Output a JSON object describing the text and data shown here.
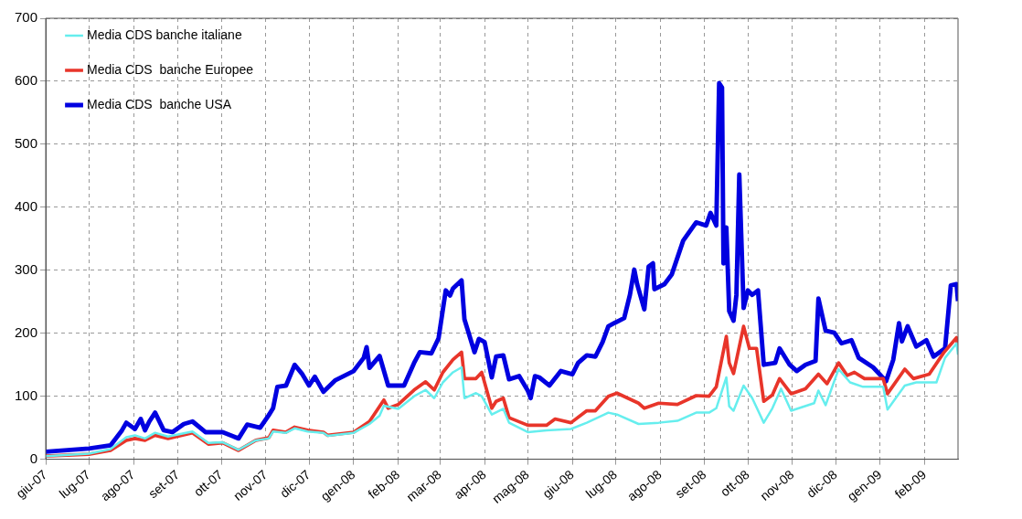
{
  "chart_data": {
    "type": "line",
    "xlim": [
      "2007-06-01",
      "2009-02-24"
    ],
    "xticks": [
      {
        "value": "2007-06-01",
        "label": "giu-07"
      },
      {
        "value": "2007-07-01",
        "label": "lug-07"
      },
      {
        "value": "2007-08-01",
        "label": "ago-07"
      },
      {
        "value": "2007-09-01",
        "label": "set-07"
      },
      {
        "value": "2007-10-01",
        "label": "ott-07"
      },
      {
        "value": "2007-11-01",
        "label": "nov-07"
      },
      {
        "value": "2007-12-01",
        "label": "dic-07"
      },
      {
        "value": "2008-01-01",
        "label": "gen-08"
      },
      {
        "value": "2008-02-01",
        "label": "feb-08"
      },
      {
        "value": "2008-03-01",
        "label": "mar-08"
      },
      {
        "value": "2008-04-01",
        "label": "apr-08"
      },
      {
        "value": "2008-05-01",
        "label": "mag-08"
      },
      {
        "value": "2008-06-01",
        "label": "giu-08"
      },
      {
        "value": "2008-07-01",
        "label": "lug-08"
      },
      {
        "value": "2008-08-01",
        "label": "ago-08"
      },
      {
        "value": "2008-09-01",
        "label": "set-08"
      },
      {
        "value": "2008-10-01",
        "label": "ott-08"
      },
      {
        "value": "2008-11-01",
        "label": "nov-08"
      },
      {
        "value": "2008-12-01",
        "label": "dic-08"
      },
      {
        "value": "2009-01-01",
        "label": "gen-09"
      },
      {
        "value": "2009-02-01",
        "label": "feb-09"
      }
    ],
    "ylim": [
      0,
      700
    ],
    "yticks": [
      0,
      100,
      200,
      300,
      400,
      500,
      600,
      700
    ],
    "grid": true,
    "legend": "top left",
    "marker": "none",
    "line_style": "solid",
    "series": [
      {
        "name": "Media CDS banche italiane",
        "color": "#66eeee",
        "x": [
          "2007-06-01",
          "2007-07-01",
          "2007-07-16",
          "2007-07-27",
          "2007-08-02",
          "2007-08-09",
          "2007-08-16",
          "2007-08-25",
          "2007-09-11",
          "2007-09-22",
          "2007-10-02",
          "2007-10-13",
          "2007-10-25",
          "2007-11-03",
          "2007-11-06",
          "2007-11-15",
          "2007-11-21",
          "2007-11-30",
          "2007-12-11",
          "2007-12-14",
          "2008-01-01",
          "2008-01-12",
          "2008-01-19",
          "2008-01-22",
          "2008-02-01",
          "2008-02-12",
          "2008-02-20",
          "2008-02-26",
          "2008-03-03",
          "2008-03-10",
          "2008-03-16",
          "2008-03-18",
          "2008-03-26",
          "2008-03-30",
          "2008-04-06",
          "2008-04-14",
          "2008-04-18",
          "2008-05-01",
          "2008-05-14",
          "2008-05-31",
          "2008-06-11",
          "2008-06-26",
          "2008-07-02",
          "2008-07-17",
          "2008-07-31",
          "2008-08-13",
          "2008-08-26",
          "2008-09-04",
          "2008-09-09",
          "2008-09-16",
          "2008-09-18",
          "2008-09-21",
          "2008-09-28",
          "2008-10-04",
          "2008-10-12",
          "2008-10-18",
          "2008-10-24",
          "2008-10-31",
          "2008-11-16",
          "2008-11-19",
          "2008-11-24",
          "2008-12-03",
          "2008-12-11",
          "2008-12-20",
          "2009-01-03",
          "2009-01-06",
          "2009-01-18",
          "2009-01-26",
          "2009-02-09",
          "2009-02-15",
          "2009-02-23",
          "2009-02-24"
        ],
        "values": [
          5,
          9,
          16,
          35,
          38,
          33,
          42,
          36,
          44,
          26,
          27,
          15,
          30,
          33,
          44,
          42,
          49,
          44,
          42,
          37,
          42,
          56,
          69,
          85,
          80,
          100,
          110,
          97,
          122,
          138,
          146,
          97,
          105,
          100,
          71,
          80,
          58,
          43,
          46,
          48,
          58,
          74,
          71,
          56,
          58,
          61,
          74,
          74,
          81,
          130,
          84,
          77,
          117,
          97,
          58,
          81,
          112,
          77,
          89,
          109,
          86,
          143,
          122,
          115,
          115,
          79,
          117,
          122,
          122,
          161,
          184,
          166
        ]
      },
      {
        "name": "Media CDS  banche Europee",
        "color": "#e8352a",
        "x": [
          "2007-06-01",
          "2007-07-01",
          "2007-07-16",
          "2007-07-27",
          "2007-08-02",
          "2007-08-09",
          "2007-08-16",
          "2007-08-25",
          "2007-09-11",
          "2007-09-22",
          "2007-10-02",
          "2007-10-13",
          "2007-10-25",
          "2007-11-03",
          "2007-11-06",
          "2007-11-15",
          "2007-11-21",
          "2007-11-30",
          "2007-12-11",
          "2007-12-14",
          "2008-01-01",
          "2008-01-12",
          "2008-01-22",
          "2008-01-25",
          "2008-02-01",
          "2008-02-12",
          "2008-02-20",
          "2008-02-26",
          "2008-03-03",
          "2008-03-10",
          "2008-03-16",
          "2008-03-18",
          "2008-03-26",
          "2008-03-30",
          "2008-04-06",
          "2008-04-09",
          "2008-04-14",
          "2008-04-18",
          "2008-05-01",
          "2008-05-14",
          "2008-05-20",
          "2008-05-31",
          "2008-06-11",
          "2008-06-17",
          "2008-06-26",
          "2008-07-02",
          "2008-07-17",
          "2008-07-21",
          "2008-07-31",
          "2008-08-13",
          "2008-08-26",
          "2008-09-04",
          "2008-09-09",
          "2008-09-16",
          "2008-09-18",
          "2008-09-21",
          "2008-09-28",
          "2008-10-02",
          "2008-10-07",
          "2008-10-12",
          "2008-10-18",
          "2008-10-23",
          "2008-10-31",
          "2008-11-10",
          "2008-11-19",
          "2008-11-25",
          "2008-12-03",
          "2008-12-09",
          "2008-12-14",
          "2008-12-21",
          "2009-01-03",
          "2009-01-06",
          "2009-01-18",
          "2009-01-24",
          "2009-02-04",
          "2009-02-14",
          "2009-02-23",
          "2009-02-24"
        ],
        "values": [
          5,
          8,
          14,
          30,
          33,
          30,
          38,
          33,
          42,
          24,
          26,
          14,
          30,
          34,
          46,
          43,
          51,
          46,
          43,
          38,
          43,
          60,
          94,
          81,
          87,
          110,
          123,
          110,
          138,
          158,
          170,
          128,
          128,
          138,
          81,
          92,
          97,
          66,
          54,
          54,
          64,
          58,
          77,
          77,
          100,
          105,
          89,
          81,
          89,
          87,
          101,
          100,
          115,
          195,
          153,
          136,
          211,
          176,
          176,
          92,
          102,
          128,
          104,
          112,
          135,
          120,
          153,
          133,
          138,
          128,
          128,
          104,
          143,
          128,
          135,
          169,
          193,
          176
        ]
      },
      {
        "name": "Media CDS  banche USA",
        "color": "#0000e0",
        "x": [
          "2007-06-01",
          "2007-07-01",
          "2007-07-16",
          "2007-07-24",
          "2007-07-27",
          "2007-08-02",
          "2007-08-06",
          "2007-08-09",
          "2007-08-12",
          "2007-08-16",
          "2007-08-22",
          "2007-08-28",
          "2007-09-05",
          "2007-09-11",
          "2007-09-20",
          "2007-10-02",
          "2007-10-13",
          "2007-10-19",
          "2007-10-28",
          "2007-11-03",
          "2007-11-06",
          "2007-11-09",
          "2007-11-15",
          "2007-11-21",
          "2007-11-26",
          "2007-12-01",
          "2007-12-05",
          "2007-12-11",
          "2007-12-19",
          "2008-01-01",
          "2008-01-08",
          "2008-01-10",
          "2008-01-12",
          "2008-01-19",
          "2008-01-25",
          "2008-02-05",
          "2008-02-12",
          "2008-02-16",
          "2008-02-24",
          "2008-02-29",
          "2008-03-05",
          "2008-03-08",
          "2008-03-10",
          "2008-03-16",
          "2008-03-18",
          "2008-03-25",
          "2008-03-28",
          "2008-04-01",
          "2008-04-06",
          "2008-04-09",
          "2008-04-14",
          "2008-04-18",
          "2008-04-25",
          "2008-05-01",
          "2008-05-03",
          "2008-05-06",
          "2008-05-09",
          "2008-05-16",
          "2008-05-24",
          "2008-06-01",
          "2008-06-05",
          "2008-06-11",
          "2008-06-17",
          "2008-06-22",
          "2008-06-26",
          "2008-06-30",
          "2008-07-07",
          "2008-07-11",
          "2008-07-14",
          "2008-07-16",
          "2008-07-21",
          "2008-07-24",
          "2008-07-27",
          "2008-07-28",
          "2008-08-04",
          "2008-08-09",
          "2008-08-17",
          "2008-08-26",
          "2008-09-02",
          "2008-09-05",
          "2008-09-09",
          "2008-09-11",
          "2008-09-13",
          "2008-09-14",
          "2008-09-16",
          "2008-09-18",
          "2008-09-21",
          "2008-09-23",
          "2008-09-25",
          "2008-09-28",
          "2008-10-01",
          "2008-10-04",
          "2008-10-08",
          "2008-10-12",
          "2008-10-20",
          "2008-10-23",
          "2008-10-30",
          "2008-11-04",
          "2008-11-10",
          "2008-11-17",
          "2008-11-19",
          "2008-11-24",
          "2008-11-30",
          "2008-12-05",
          "2008-12-12",
          "2008-12-17",
          "2008-12-27",
          "2009-01-05",
          "2009-01-10",
          "2009-01-14",
          "2009-01-16",
          "2009-01-20",
          "2009-01-26",
          "2009-02-02",
          "2009-02-07",
          "2009-02-15",
          "2009-02-19",
          "2009-02-23",
          "2009-02-24"
        ],
        "values": [
          12,
          17,
          22,
          46,
          58,
          48,
          64,
          46,
          60,
          74,
          46,
          43,
          56,
          60,
          43,
          43,
          33,
          55,
          50,
          70,
          81,
          115,
          117,
          150,
          136,
          117,
          131,
          107,
          125,
          140,
          161,
          178,
          145,
          164,
          117,
          117,
          153,
          170,
          168,
          192,
          268,
          260,
          271,
          284,
          222,
          170,
          191,
          186,
          130,
          163,
          165,
          127,
          132,
          109,
          97,
          132,
          130,
          117,
          140,
          135,
          153,
          165,
          163,
          186,
          211,
          216,
          224,
          261,
          301,
          278,
          238,
          306,
          311,
          270,
          278,
          293,
          347,
          376,
          371,
          391,
          371,
          597,
          590,
          311,
          368,
          235,
          220,
          261,
          452,
          240,
          268,
          261,
          268,
          150,
          153,
          176,
          150,
          140,
          150,
          156,
          255,
          204,
          201,
          184,
          189,
          161,
          146,
          124,
          158,
          216,
          187,
          211,
          179,
          189,
          163,
          176,
          276,
          278,
          251
        ]
      }
    ]
  }
}
